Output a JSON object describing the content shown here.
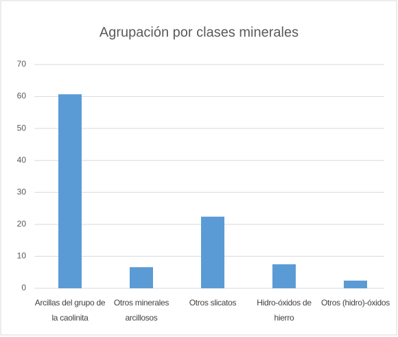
{
  "chart_data": {
    "type": "bar",
    "title": "Agrupación por clases minerales",
    "categories": [
      "Arcillas del grupo de la caolinita",
      "Otros minerales arcillosos",
      "Otros slicatos",
      "Hidro-óxidos de hierro",
      "Otros (hidro)-óxidos"
    ],
    "values": [
      60.7,
      6.6,
      22.4,
      7.5,
      2.4
    ],
    "color": "#5b9bd5",
    "ylim": [
      0,
      70
    ],
    "yticks": [
      0,
      10,
      20,
      30,
      40,
      50,
      60,
      70
    ],
    "grid": true
  }
}
